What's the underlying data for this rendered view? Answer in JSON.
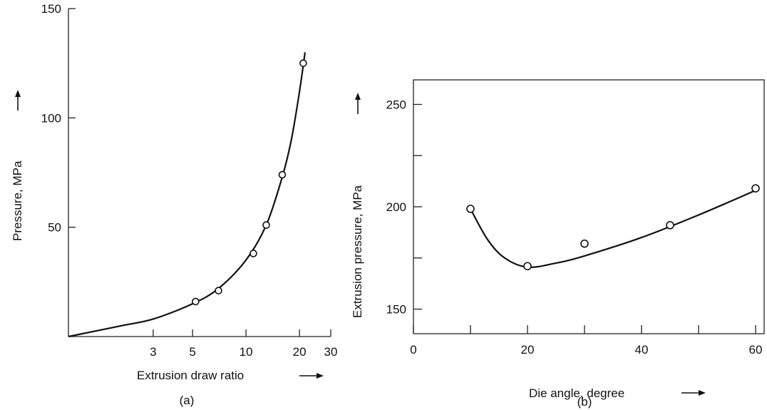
{
  "chart_data": [
    {
      "id": "a",
      "type": "line",
      "panel_label": "(a)",
      "xlabel": "Extrusion draw ratio",
      "ylabel": "Pressure, MPa",
      "xscale": "log",
      "xlim": [
        1,
        30
      ],
      "ylim": [
        0,
        150
      ],
      "xticks": [
        3,
        5,
        10,
        20,
        30
      ],
      "yticks": [
        50,
        100,
        150
      ],
      "series": [
        {
          "markers": "open-circle",
          "points": [
            {
              "x": 5.2,
              "y": 16
            },
            {
              "x": 7,
              "y": 21
            },
            {
              "x": 11,
              "y": 38
            },
            {
              "x": 13,
              "y": 51
            },
            {
              "x": 16,
              "y": 74
            },
            {
              "x": 21,
              "y": 125
            }
          ],
          "curve": [
            {
              "x": 1,
              "y": 0
            },
            {
              "x": 2,
              "y": 5
            },
            {
              "x": 3,
              "y": 8
            },
            {
              "x": 5,
              "y": 15
            },
            {
              "x": 7,
              "y": 22
            },
            {
              "x": 10,
              "y": 35
            },
            {
              "x": 13,
              "y": 51
            },
            {
              "x": 16,
              "y": 73
            },
            {
              "x": 18,
              "y": 90
            },
            {
              "x": 20,
              "y": 112
            },
            {
              "x": 21.5,
              "y": 130
            }
          ]
        }
      ]
    },
    {
      "id": "b",
      "type": "line",
      "panel_label": "(b)",
      "xlabel": "Die angle, degree",
      "ylabel": "Extrusion pressure, MPa",
      "xlim": [
        0,
        60
      ],
      "ylim": [
        138,
        262
      ],
      "xticks": [
        0,
        20,
        40,
        60
      ],
      "yticks": [
        150,
        200,
        250
      ],
      "minor_xticks": [
        10,
        30,
        50
      ],
      "minor_yticks": [
        175,
        225
      ],
      "series": [
        {
          "markers": "open-circle",
          "points": [
            {
              "x": 10,
              "y": 199
            },
            {
              "x": 20,
              "y": 171
            },
            {
              "x": 30,
              "y": 182
            },
            {
              "x": 45,
              "y": 191
            },
            {
              "x": 60,
              "y": 209
            }
          ],
          "curve": [
            {
              "x": 10,
              "y": 199
            },
            {
              "x": 13,
              "y": 184
            },
            {
              "x": 16,
              "y": 175
            },
            {
              "x": 20,
              "y": 170.5
            },
            {
              "x": 25,
              "y": 172.5
            },
            {
              "x": 30,
              "y": 176
            },
            {
              "x": 40,
              "y": 185
            },
            {
              "x": 50,
              "y": 196
            },
            {
              "x": 60,
              "y": 208
            }
          ]
        }
      ]
    }
  ]
}
